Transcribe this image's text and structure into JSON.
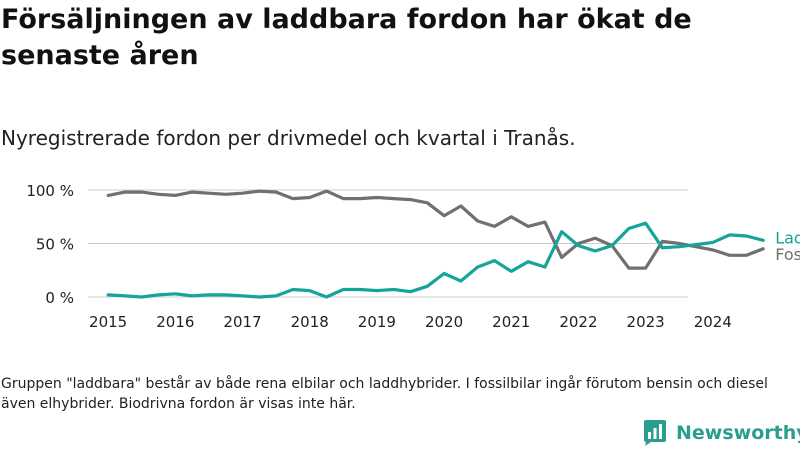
{
  "title": "Försäljningen av laddbara fordon har ökat de senaste åren",
  "subtitle": "Nyregistrerade fordon per drivmedel och kvartal i Tranås.",
  "note": "Gruppen \"laddbara\" består av både rena elbilar och laddhybrider. I fossilbilar ingår förutom bensin och diesel även elhybrider. Biodrivna fordon är visas inte här.",
  "brand": {
    "name": "Newsworthy",
    "icon": "newsworthy-logo-icon"
  },
  "colors": {
    "laddbara": "#15a49a",
    "fossil": "#707070",
    "grid": "#cccccc",
    "brand": "#2a9d8f"
  },
  "chart_data": {
    "type": "line",
    "title": "Nyregistrerade fordon per drivmedel och kvartal i Tranås.",
    "xlabel": "",
    "ylabel": "",
    "x_start": 2015.0,
    "x_step": 0.25,
    "xlim": [
      2014.7,
      2025.0
    ],
    "ylim": [
      0,
      100
    ],
    "yticks": [
      {
        "value": 0,
        "label": "0 %"
      },
      {
        "value": 50,
        "label": "50 %"
      },
      {
        "value": 100,
        "label": "100 %"
      }
    ],
    "xticks": [
      {
        "value": 2015,
        "label": "2015"
      },
      {
        "value": 2016,
        "label": "2016"
      },
      {
        "value": 2017,
        "label": "2017"
      },
      {
        "value": 2018,
        "label": "2018"
      },
      {
        "value": 2019,
        "label": "2019"
      },
      {
        "value": 2020,
        "label": "2020"
      },
      {
        "value": 2021,
        "label": "2021"
      },
      {
        "value": 2022,
        "label": "2022"
      },
      {
        "value": 2023,
        "label": "2023"
      },
      {
        "value": 2024,
        "label": "2024"
      }
    ],
    "series": [
      {
        "name": "Laddbara",
        "key": "laddbara",
        "values": [
          2,
          1,
          0,
          2,
          3,
          1,
          2,
          2,
          1,
          0,
          1,
          7,
          6,
          0,
          7,
          7,
          6,
          7,
          5,
          10,
          22,
          15,
          28,
          34,
          24,
          33,
          28,
          61,
          48,
          43,
          48,
          64,
          69,
          46,
          47,
          49,
          51,
          58,
          57,
          53
        ]
      },
      {
        "name": "Fossilbilar",
        "key": "fossil",
        "values": [
          95,
          98,
          98,
          96,
          95,
          98,
          97,
          96,
          97,
          99,
          98,
          92,
          93,
          99,
          92,
          92,
          93,
          92,
          91,
          88,
          76,
          85,
          71,
          66,
          75,
          66,
          70,
          37,
          50,
          55,
          48,
          27,
          27,
          52,
          50,
          47,
          44,
          39,
          39,
          45
        ]
      }
    ]
  }
}
